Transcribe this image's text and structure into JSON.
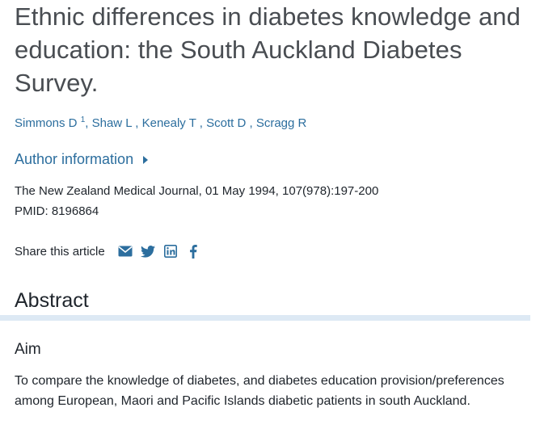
{
  "article": {
    "title": "Ethnic differences in diabetes knowledge and education: the South Auckland Diabetes Survey.",
    "authors": [
      {
        "name": "Simmons D",
        "affiliation": "1"
      },
      {
        "name": "Shaw L"
      },
      {
        "name": "Kenealy T"
      },
      {
        "name": "Scott D"
      },
      {
        "name": "Scragg R"
      }
    ],
    "author_info_label": "Author information",
    "journal": "The New Zealand Medical Journal",
    "citation_rest": ", 01 May 1994, 107(978):197-200",
    "pmid": "PMID: 8196864"
  },
  "share": {
    "label": "Share this article",
    "icons": [
      "email-icon",
      "twitter-icon",
      "linkedin-icon",
      "facebook-icon"
    ],
    "icon_color": "#2c6e9e"
  },
  "abstract": {
    "heading": "Abstract",
    "sections": [
      {
        "heading": "Aim",
        "text": "To compare the knowledge of diabetes, and diabetes education provision/preferences among European, Maori and Pacific Islands diabetic patients in south Auckland."
      }
    ]
  },
  "colors": {
    "link": "#2c6e9e",
    "title": "#494d52",
    "text": "#20262d",
    "divider": "#dde9f4"
  }
}
